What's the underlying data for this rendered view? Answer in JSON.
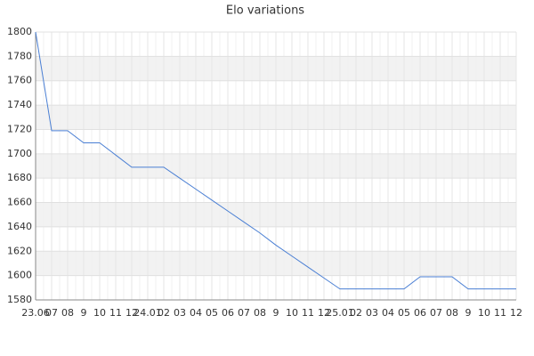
{
  "chart_data": {
    "type": "line",
    "title": "Elo variations",
    "categories": [
      "23.06",
      "07",
      "08",
      "9",
      "10",
      "11",
      "12",
      "24.01",
      "02",
      "03",
      "04",
      "05",
      "06",
      "07",
      "08",
      "9",
      "10",
      "11",
      "12",
      "25.01",
      "02",
      "03",
      "04",
      "05",
      "06",
      "07",
      "08",
      "9",
      "10",
      "11",
      "12"
    ],
    "series": [
      {
        "name": "Elo",
        "color": "#4a7fd4",
        "values": [
          1800,
          1719,
          1719,
          1709,
          1709,
          1699,
          1689,
          1689,
          1689,
          1680,
          1671,
          1662,
          1653,
          1644,
          1635,
          1625,
          1616,
          1607,
          1598,
          1589,
          1589,
          1589,
          1589,
          1589,
          1599,
          1599,
          1599,
          1589,
          1589,
          1589,
          1589
        ]
      }
    ],
    "ylim": [
      1580,
      1800
    ],
    "yticks": [
      1580,
      1600,
      1620,
      1640,
      1660,
      1680,
      1700,
      1720,
      1740,
      1760,
      1780,
      1800
    ],
    "grid": true
  }
}
